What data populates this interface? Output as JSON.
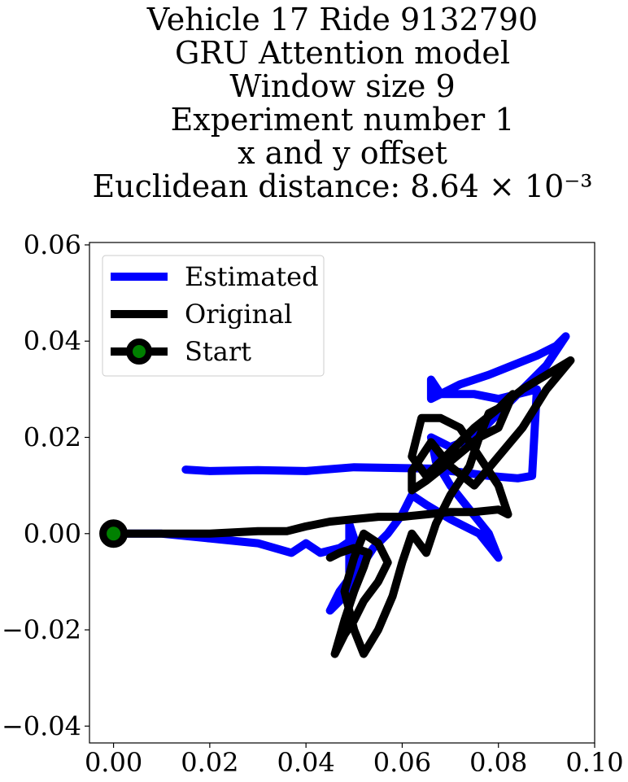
{
  "chart_data": {
    "type": "line",
    "title_lines": [
      "Vehicle 17 Ride 9132790",
      "GRU Attention model",
      "Window size 9",
      "Experiment number 1",
      "x and y offset",
      "Euclidean distance: 8.64 × 10⁻³"
    ],
    "xlabel": "",
    "ylabel": "",
    "xlim": [
      -0.005,
      0.1
    ],
    "ylim": [
      -0.0435,
      0.0605
    ],
    "xticks": [
      0.0,
      0.02,
      0.04,
      0.06,
      0.08,
      0.1
    ],
    "xtick_labels": [
      "0.00",
      "0.02",
      "0.04",
      "0.06",
      "0.08",
      "0.10"
    ],
    "yticks": [
      -0.04,
      -0.02,
      0.0,
      0.02,
      0.04,
      0.06
    ],
    "ytick_labels": [
      "−0.04",
      "−0.02",
      "0.00",
      "0.02",
      "0.04",
      "0.06"
    ],
    "grid": false,
    "legend_position": "upper-left",
    "series": [
      {
        "name": "Estimated",
        "color": "#0000ff",
        "x": [
          0.015,
          0.02,
          0.03,
          0.04,
          0.05,
          0.06,
          0.066,
          0.072,
          0.078,
          0.084,
          0.087,
          0.088,
          0.084,
          0.08,
          0.075,
          0.068,
          0.066,
          0.066,
          0.072,
          0.078,
          0.083,
          0.088,
          0.092,
          0.094,
          0.09,
          0.085,
          0.08,
          0.075,
          0.07,
          0.068,
          0.066,
          0.067,
          0.07,
          0.074,
          0.078,
          0.08,
          0.076,
          0.07,
          0.065,
          0.062,
          0.06,
          0.057,
          0.054,
          0.052,
          0.05,
          0.048,
          0.045,
          0.047,
          0.05,
          0.052,
          0.05,
          0.049,
          0.049,
          0.05,
          0.047,
          0.043,
          0.04,
          0.037,
          0.03,
          0.02,
          0.01,
          0.005,
          0.0
        ],
        "y": [
          0.0133,
          0.013,
          0.0132,
          0.013,
          0.0138,
          0.0136,
          0.0135,
          0.0128,
          0.012,
          0.0115,
          0.012,
          0.03,
          0.029,
          0.028,
          0.029,
          0.029,
          0.032,
          0.028,
          0.031,
          0.033,
          0.035,
          0.037,
          0.039,
          0.041,
          0.035,
          0.03,
          0.025,
          0.02,
          0.018,
          0.019,
          0.02,
          0.015,
          0.01,
          0.005,
          0.0,
          -0.005,
          0.0,
          0.003,
          0.006,
          0.008,
          0.004,
          0.0,
          -0.003,
          -0.006,
          -0.01,
          -0.013,
          -0.016,
          -0.012,
          -0.008,
          -0.004,
          -0.002,
          -0.008,
          0.002,
          -0.001,
          -0.003,
          -0.004,
          -0.002,
          -0.004,
          -0.002,
          -0.001,
          0.0,
          0.0,
          0.0
        ]
      },
      {
        "name": "Original",
        "color": "#000000",
        "x": [
          0.0,
          0.01,
          0.02,
          0.03,
          0.036,
          0.04,
          0.045,
          0.05,
          0.055,
          0.06,
          0.065,
          0.07,
          0.075,
          0.08,
          0.082,
          0.08,
          0.076,
          0.072,
          0.068,
          0.064,
          0.062,
          0.065,
          0.07,
          0.075,
          0.08,
          0.085,
          0.09,
          0.095,
          0.09,
          0.085,
          0.08,
          0.075,
          0.07,
          0.066,
          0.062,
          0.062,
          0.065,
          0.07,
          0.076,
          0.08,
          0.083,
          0.08,
          0.078,
          0.076,
          0.074,
          0.07,
          0.067,
          0.065,
          0.062,
          0.06,
          0.058,
          0.055,
          0.052,
          0.05,
          0.048,
          0.05,
          0.052,
          0.055,
          0.057,
          0.055,
          0.052,
          0.05,
          0.048,
          0.046,
          0.048,
          0.05,
          0.052,
          0.053,
          0.05,
          0.047,
          0.045
        ],
        "y": [
          0.0,
          0.0,
          0.0,
          0.0005,
          0.0005,
          0.0015,
          0.0025,
          0.003,
          0.0035,
          0.0035,
          0.004,
          0.0045,
          0.0045,
          0.005,
          0.004,
          0.01,
          0.016,
          0.022,
          0.024,
          0.024,
          0.016,
          0.012,
          0.017,
          0.022,
          0.026,
          0.03,
          0.033,
          0.036,
          0.03,
          0.022,
          0.016,
          0.01,
          0.014,
          0.019,
          0.013,
          0.009,
          0.011,
          0.015,
          0.02,
          0.022,
          0.029,
          0.026,
          0.025,
          0.02,
          0.014,
          0.008,
          0.002,
          -0.004,
          0.0,
          -0.006,
          -0.013,
          -0.02,
          -0.025,
          -0.02,
          -0.012,
          -0.005,
          0.0,
          -0.002,
          -0.006,
          -0.01,
          -0.014,
          -0.018,
          -0.021,
          -0.025,
          -0.018,
          -0.012,
          -0.007,
          -0.004,
          -0.003,
          -0.004,
          -0.005
        ]
      }
    ],
    "start_marker": {
      "name": "Start",
      "x": 0.0,
      "y": 0.0,
      "outer_color": "#000000",
      "inner_color": "#008000"
    }
  }
}
